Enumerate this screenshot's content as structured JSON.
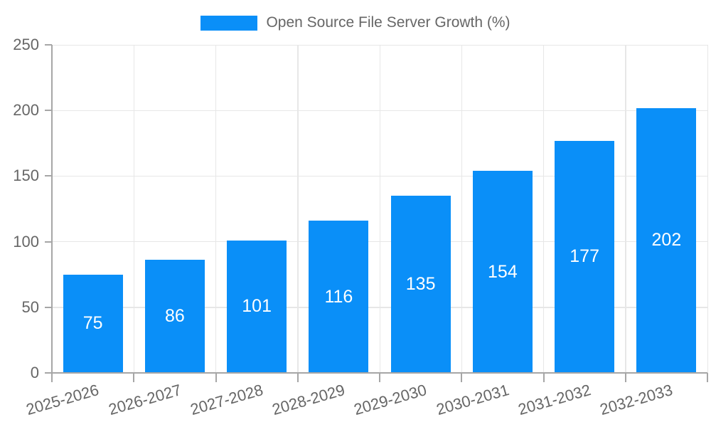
{
  "chart_data": {
    "type": "bar",
    "title": "Open Source File Server Growth (%)",
    "categories": [
      "2025-2026",
      "2026-2027",
      "2027-2028",
      "2028-2029",
      "2029-2030",
      "2030-2031",
      "2031-2032",
      "2032-2033"
    ],
    "values": [
      75,
      86,
      101,
      116,
      135,
      154,
      177,
      202
    ],
    "series": [
      {
        "name": "Open Source File Server Growth (%)",
        "values": [
          75,
          86,
          101,
          116,
          135,
          154,
          177,
          202
        ]
      }
    ],
    "legend": {
      "position": "top",
      "entries": [
        {
          "label": "Open Source File Server Growth (%)",
          "color": "#0a8ff8"
        }
      ]
    },
    "xlabel": "",
    "ylabel": "",
    "ylim": [
      0,
      250
    ],
    "yticks": [
      0,
      50,
      100,
      150,
      200,
      250
    ],
    "grid": true,
    "x_tick_rotation_deg": -16,
    "colors": {
      "bar": "#0a8ff8",
      "value_label": "#ffffff",
      "axis": "#a6a6a6",
      "grid": "#e7e7e7",
      "tick_label": "#666666",
      "background": "#ffffff"
    }
  }
}
